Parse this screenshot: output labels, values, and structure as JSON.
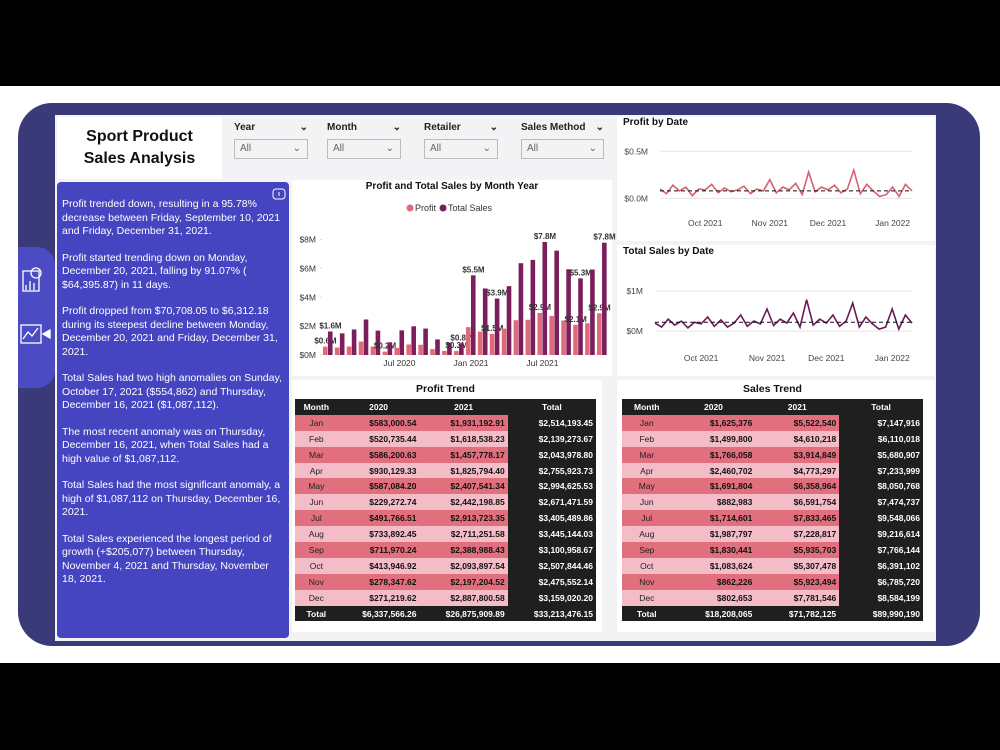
{
  "title": "Sport Product Sales Analysis",
  "filters": [
    {
      "label": "Year",
      "value": "All"
    },
    {
      "label": "Month",
      "value": "All"
    },
    {
      "label": "Retailer",
      "value": "All"
    },
    {
      "label": "Sales Method",
      "value": "All"
    }
  ],
  "narrative": [
    "Profit trended down, resulting in a 95.78% decrease between Friday, September 10, 2021 and Friday, December 31, 2021.",
    "Profit started trending down on Monday, December 20, 2021, falling by 91.07% ( $64,395.87) in 11 days.",
    "Profit dropped from $70,708.05 to $6,312.18 during its steepest decline between Monday, December 20, 2021 and Friday, December 31, 2021.",
    "Total Sales had two high anomalies on Sunday, October 17, 2021 ($554,862) and Thursday, December 16, 2021 ($1,087,112).",
    "The most recent anomaly was on Thursday, December 16, 2021, when Total Sales had a high value of $1,087,112.",
    "Total Sales had the most significant anomaly, a high of $1,087,112 on Thursday, December 16, 2021.",
    "Total Sales experienced the longest period of growth (+$205,077) between Thursday, November 4, 2021 and Thursday, November 18, 2021."
  ],
  "chart_data": [
    {
      "type": "bar",
      "title": "Profit and Total Sales by Month Year",
      "categories": [
        null,
        null,
        null,
        null,
        null,
        null,
        "Jul 2020",
        null,
        null,
        null,
        null,
        null,
        "Jan 2021",
        null,
        null,
        null,
        null,
        null,
        "Jul 2021",
        null,
        null,
        null,
        null,
        null
      ],
      "series": [
        {
          "name": "Profit",
          "color": "#e06a78",
          "values": [
            0.58,
            0.52,
            0.59,
            0.93,
            0.59,
            0.23,
            0.49,
            0.73,
            0.71,
            0.41,
            0.28,
            0.27,
            1.93,
            1.62,
            1.46,
            1.83,
            2.41,
            2.44,
            2.91,
            2.71,
            2.39,
            2.09,
            2.2,
            2.89
          ],
          "value_labels": [
            "$0.6M",
            null,
            null,
            null,
            null,
            "$0.2M",
            null,
            null,
            null,
            null,
            null,
            "$0.3M",
            null,
            null,
            "$1.5M",
            null,
            null,
            null,
            "$2.9M",
            null,
            null,
            "$2.1M",
            null,
            "$2.9M"
          ]
        },
        {
          "name": "Total Sales",
          "color": "#7a1f5c",
          "values": [
            1.63,
            1.5,
            1.77,
            2.46,
            1.69,
            0.88,
            1.71,
            1.99,
            1.83,
            1.08,
            0.86,
            0.8,
            5.52,
            4.61,
            3.91,
            4.77,
            6.36,
            6.59,
            7.83,
            7.23,
            5.94,
            5.31,
            5.92,
            7.78
          ],
          "value_labels": [
            "$1.6M",
            null,
            null,
            null,
            null,
            null,
            null,
            null,
            null,
            null,
            null,
            "$0.8M",
            "$5.5M",
            null,
            "$3.9M",
            null,
            null,
            null,
            "$7.8M",
            null,
            null,
            "$5.3M",
            null,
            "$7.8M"
          ]
        }
      ],
      "ylim": [
        0,
        8.8
      ],
      "yticks": [
        {
          "value": 0,
          "label": "$0M"
        },
        {
          "value": 2,
          "label": "$2M"
        },
        {
          "value": 4,
          "label": "$4M"
        },
        {
          "value": 6,
          "label": "$6M"
        },
        {
          "value": 8,
          "label": "$8M"
        }
      ],
      "legend": "top"
    },
    {
      "type": "line",
      "title": "Profit by Date",
      "categories": [
        null,
        null,
        null,
        null,
        null,
        null,
        null,
        "Oct 2021",
        null,
        null,
        null,
        null,
        null,
        null,
        null,
        null,
        null,
        "Nov 2021",
        null,
        null,
        null,
        null,
        null,
        null,
        null,
        null,
        "Dec 2021",
        null,
        null,
        null,
        null,
        null,
        null,
        null,
        null,
        null,
        "Jan 2022",
        null,
        null,
        null
      ],
      "series": [
        {
          "color": "#d95f6e",
          "values": [
            0.1,
            0.05,
            0.14,
            0.08,
            0.12,
            0.03,
            0.1,
            0.09,
            0.15,
            0.06,
            0.11,
            0.07,
            0.09,
            0.13,
            0.05,
            0.1,
            0.08,
            0.2,
            0.06,
            0.12,
            0.09,
            0.16,
            0.04,
            0.28,
            0.07,
            0.12,
            0.09,
            0.14,
            0.06,
            0.1,
            0.3,
            0.05,
            0.15,
            0.08,
            0.02,
            0.04,
            0.12,
            0.02,
            0.15,
            0.08
          ]
        }
      ],
      "reference_line": 0.08,
      "ylim": [
        -0.07,
        0.62
      ],
      "yticks": [
        {
          "value": 0,
          "label": "$0.0M"
        },
        {
          "value": 0.5,
          "label": "$0.5M"
        }
      ]
    },
    {
      "type": "line",
      "title": "Total Sales by Date",
      "categories": [
        null,
        null,
        null,
        null,
        null,
        null,
        null,
        "Oct 2021",
        null,
        null,
        null,
        null,
        null,
        null,
        null,
        null,
        null,
        "Nov 2021",
        null,
        null,
        null,
        null,
        null,
        null,
        null,
        null,
        "Dec 2021",
        null,
        null,
        null,
        null,
        null,
        null,
        null,
        null,
        null,
        "Jan 2022",
        null,
        null,
        null
      ],
      "series": [
        {
          "color": "#6a1a55",
          "values": [
            0.2,
            0.1,
            0.3,
            0.15,
            0.25,
            0.08,
            0.22,
            0.18,
            0.35,
            0.12,
            0.28,
            0.1,
            0.2,
            0.4,
            0.12,
            0.25,
            0.18,
            0.55,
            0.14,
            0.3,
            0.2,
            0.45,
            0.1,
            0.78,
            0.15,
            0.3,
            0.2,
            0.4,
            0.12,
            0.25,
            0.7,
            0.1,
            0.35,
            0.18,
            0.05,
            0.1,
            0.55,
            0.05,
            0.4,
            0.2
          ]
        }
      ],
      "reference_line": 0.22,
      "ylim": [
        -0.22,
        1.27
      ],
      "yticks": [
        {
          "value": 0,
          "label": "$0M"
        },
        {
          "value": 1,
          "label": "$1M"
        }
      ]
    }
  ],
  "tables": [
    {
      "title": "Profit Trend",
      "columns": [
        "Month",
        "2020",
        "2021",
        "Total"
      ],
      "rows": [
        [
          "Jan",
          "$583,000.54",
          "$1,931,192.91",
          "$2,514,193.45"
        ],
        [
          "Feb",
          "$520,735.44",
          "$1,618,538.23",
          "$2,139,273.67"
        ],
        [
          "Mar",
          "$586,200.63",
          "$1,457,778.17",
          "$2,043,978.80"
        ],
        [
          "Apr",
          "$930,129.33",
          "$1,825,794.40",
          "$2,755,923.73"
        ],
        [
          "May",
          "$587,084.20",
          "$2,407,541.34",
          "$2,994,625.53"
        ],
        [
          "Jun",
          "$229,272.74",
          "$2,442,198.85",
          "$2,671,471.59"
        ],
        [
          "Jul",
          "$491,766.51",
          "$2,913,723.35",
          "$3,405,489.86"
        ],
        [
          "Aug",
          "$733,892.45",
          "$2,711,251.58",
          "$3,445,144.03"
        ],
        [
          "Sep",
          "$711,970.24",
          "$2,388,988.43",
          "$3,100,958.67"
        ],
        [
          "Oct",
          "$413,946.92",
          "$2,093,897.54",
          "$2,507,844.46"
        ],
        [
          "Nov",
          "$278,347.62",
          "$2,197,204.52",
          "$2,475,552.14"
        ],
        [
          "Dec",
          "$271,219.62",
          "$2,887,800.58",
          "$3,159,020.20"
        ]
      ],
      "total": [
        "Total",
        "$6,337,566.26",
        "$26,875,909.89",
        "$33,213,476.15"
      ]
    },
    {
      "title": "Sales Trend",
      "columns": [
        "Month",
        "2020",
        "2021",
        "Total"
      ],
      "rows": [
        [
          "Jan",
          "$1,625,376",
          "$5,522,540",
          "$7,147,916"
        ],
        [
          "Feb",
          "$1,499,800",
          "$4,610,218",
          "$6,110,018"
        ],
        [
          "Mar",
          "$1,766,058",
          "$3,914,849",
          "$5,680,907"
        ],
        [
          "Apr",
          "$2,460,702",
          "$4,773,297",
          "$7,233,999"
        ],
        [
          "May",
          "$1,691,804",
          "$6,358,964",
          "$8,050,768"
        ],
        [
          "Jun",
          "$882,983",
          "$6,591,754",
          "$7,474,737"
        ],
        [
          "Jul",
          "$1,714,601",
          "$7,833,465",
          "$9,548,066"
        ],
        [
          "Aug",
          "$1,987,797",
          "$7,228,817",
          "$9,216,614"
        ],
        [
          "Sep",
          "$1,830,441",
          "$5,935,703",
          "$7,766,144"
        ],
        [
          "Oct",
          "$1,083,624",
          "$5,307,478",
          "$6,391,102"
        ],
        [
          "Nov",
          "$862,226",
          "$5,923,494",
          "$6,785,720"
        ],
        [
          "Dec",
          "$802,653",
          "$7,781,546",
          "$8,584,199"
        ]
      ],
      "total": [
        "Total",
        "$18,208,065",
        "$71,782,125",
        "$89,990,190"
      ]
    }
  ]
}
